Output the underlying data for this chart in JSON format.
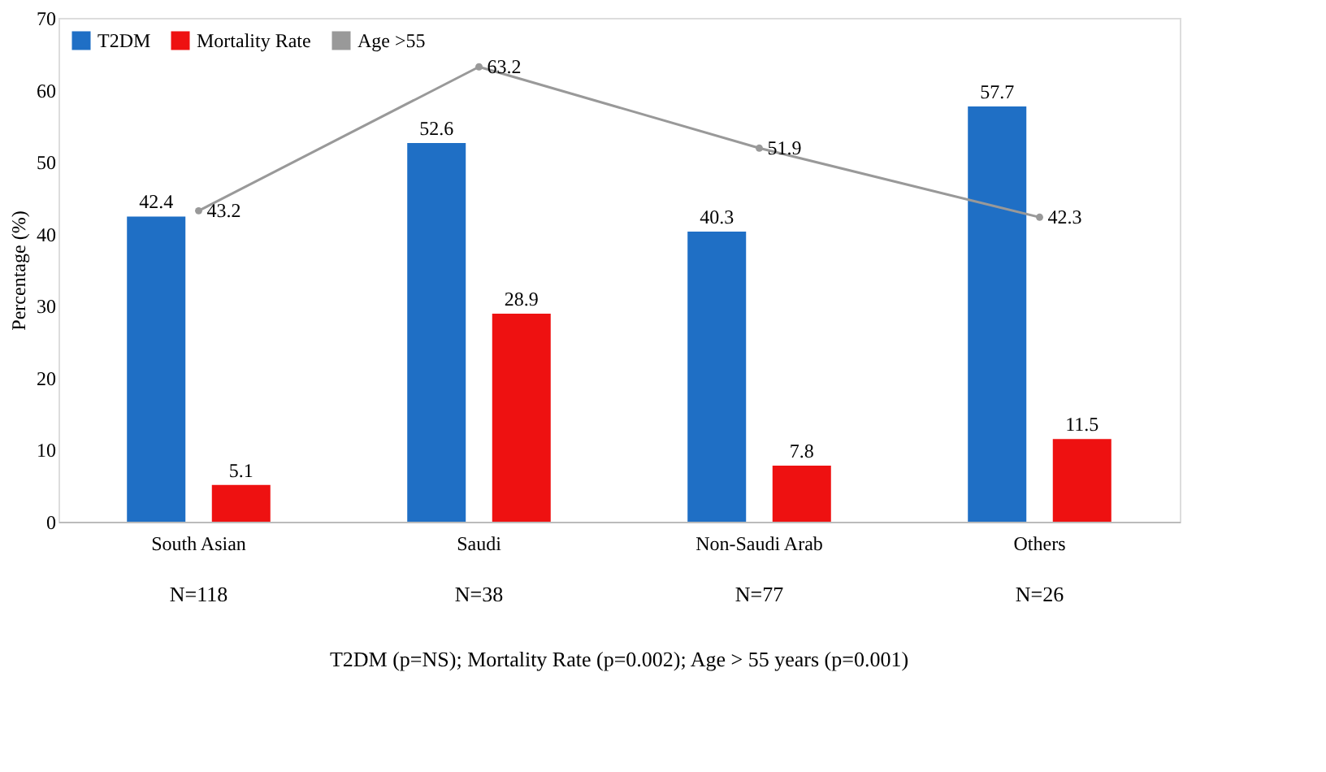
{
  "chart_data": {
    "type": "bar",
    "categories": [
      "South Asian",
      "Saudi",
      "Non-Saudi Arab",
      "Others"
    ],
    "series": [
      {
        "name": "T2DM",
        "color": "#1f6fc5",
        "values": [
          42.4,
          52.6,
          40.3,
          57.7
        ]
      },
      {
        "name": "Mortality Rate",
        "color": "#ee1111",
        "values": [
          5.1,
          28.9,
          7.8,
          11.5
        ]
      },
      {
        "name": "Age >55",
        "type": "line",
        "color": "#999999",
        "values": [
          43.2,
          63.2,
          51.9,
          42.3
        ]
      }
    ],
    "ylabel": "Percentage (%)",
    "ylim": [
      0,
      70
    ],
    "yticks": [
      0,
      10,
      20,
      30,
      40,
      50,
      60,
      70
    ],
    "data_labels": true,
    "legend": "top left",
    "grid": false,
    "marker": "circle",
    "annotations": [
      "N=118",
      "N=38",
      "N=77",
      "N=26",
      "T2DM (p=NS); Mortality Rate (p=0.002); Age > 55 years (p=0.001)"
    ]
  }
}
